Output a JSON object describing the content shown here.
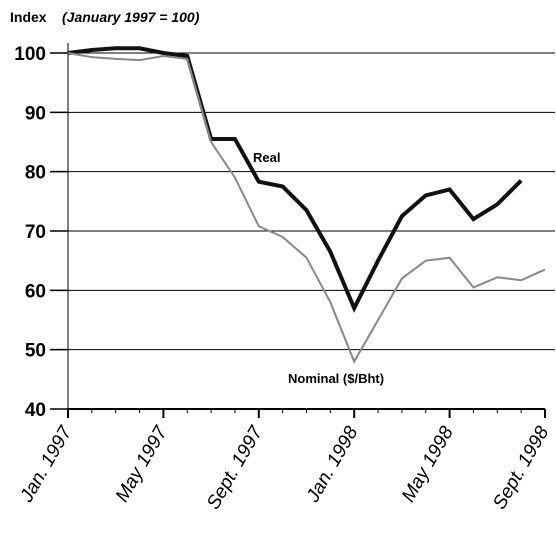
{
  "chart_data": {
    "type": "line",
    "ylabel": "Index",
    "ylabel_note": "(January 1997 = 100)",
    "categories": [
      "Jan. 1997",
      null,
      null,
      null,
      "May 1997",
      null,
      null,
      null,
      "Sept. 1997",
      null,
      null,
      null,
      "Jan. 1998",
      null,
      null,
      null,
      "May 1998",
      null,
      null,
      null,
      "Sept. 1998"
    ],
    "series": [
      {
        "name": "Real",
        "color": "#111111",
        "width": 4,
        "values": [
          100,
          100.5,
          100.8,
          100.8,
          100,
          99.5,
          85.5,
          85.5,
          78.3,
          77.5,
          73.5,
          66.5,
          57,
          65,
          72.5,
          76,
          77,
          72,
          74.5,
          78.5,
          null
        ]
      },
      {
        "name": "Nominal ($/Bht)",
        "color": "#888888",
        "width": 2,
        "values": [
          100,
          99.3,
          99,
          98.8,
          99.5,
          99,
          85,
          79,
          70.8,
          69,
          65.5,
          58,
          48,
          55,
          62,
          65,
          65.5,
          60.5,
          62.2,
          61.7,
          63.5
        ]
      }
    ],
    "ylim": [
      40,
      100
    ],
    "yticks": [
      40,
      50,
      60,
      70,
      80,
      90,
      100
    ],
    "grid": true
  }
}
